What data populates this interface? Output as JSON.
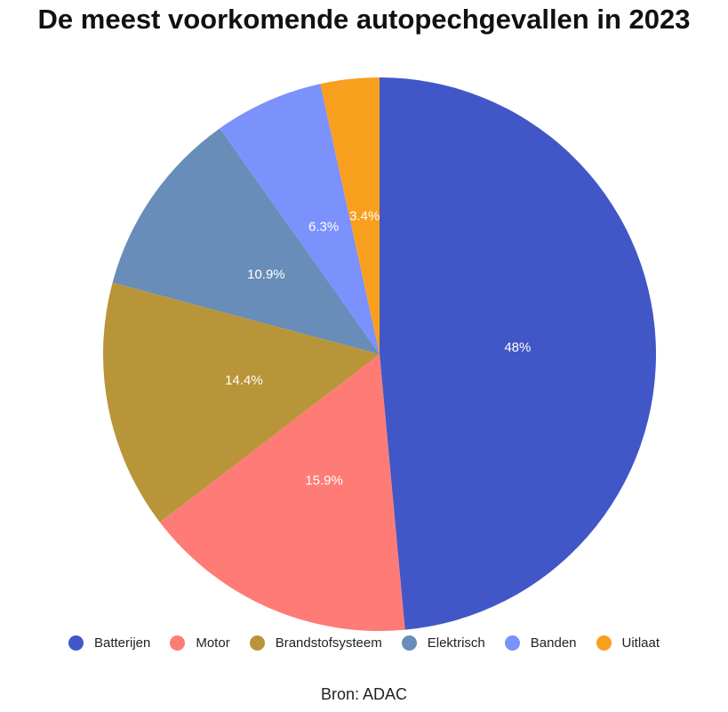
{
  "chart_data": {
    "type": "pie",
    "title": "De meest voorkomende autopechgevallen in 2023",
    "categories": [
      "Batterijen",
      "Motor",
      "Brandstofsysteem",
      "Elektrisch",
      "Banden",
      "Uitlaat"
    ],
    "values": [
      48,
      15.9,
      14.4,
      10.9,
      6.3,
      3.4
    ],
    "labels": [
      "48%",
      "15.9%",
      "14.4%",
      "10.9%",
      "6.3%",
      "3.4%"
    ],
    "colors": [
      "#4257c7",
      "#ff7b76",
      "#b9953a",
      "#678db8",
      "#7b91fb",
      "#f99f1e"
    ],
    "legend_position": "bottom",
    "source": "Bron: ADAC"
  }
}
